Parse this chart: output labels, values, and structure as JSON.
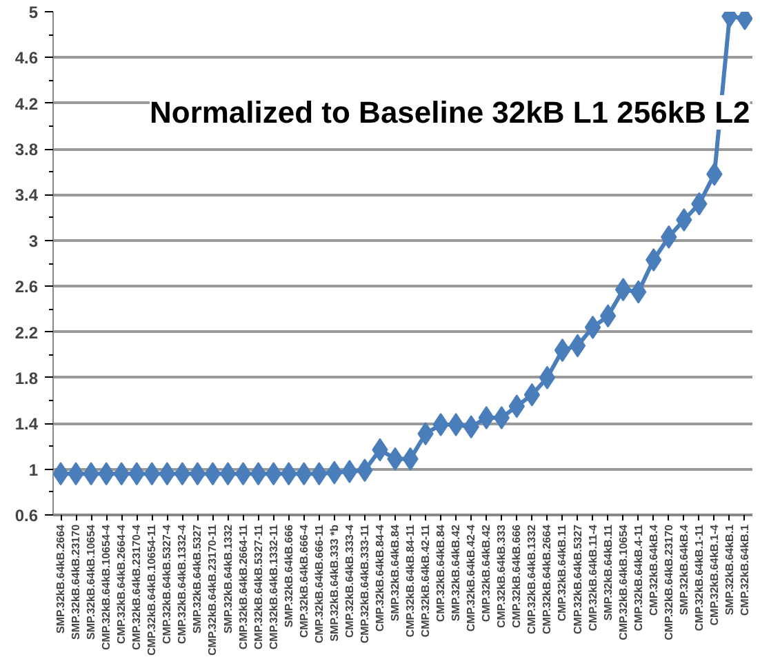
{
  "chart_data": {
    "type": "line",
    "title": "Normalized to Baseline 32kB L1 256kB L2",
    "categories": [
      "SMP.32kB.64kB.2664",
      "SMP.32kB.64kB.23170",
      "SMP.32kB.64kB.10654",
      "CMP.32kB.64kB.10654-4",
      "CMP.32kB.64kB.2664-4",
      "CMP.32kB.64kB.23170-4",
      "CMP.32kB.64kB.10654-11",
      "CMP.32kB.64kB.5327-4",
      "CMP.32kB.64kB.1332-4",
      "SMP.32kB.64kB.5327",
      "CMP.32kB.64kB.23170-11",
      "SMP.32kB.64kB.1332",
      "CMP.32kB.64kB.2664-11",
      "CMP.32kB.64kB.5327-11",
      "CMP.32kB.64kB.1332-11",
      "SMP.32kB.64kB.666",
      "CMP.32kB.64kB.666-4",
      "CMP.32kB.64kB.666-11",
      "SMP.32kB.64kB.333 *b",
      "CMP.32kB.64kB.333-4",
      "CMP.32kB.64kB.333-11",
      "CMP.32kB.64kB.84-4",
      "SMP.32kB.64kB.84",
      "CMP.32kB.64kB.84-11",
      "CMP.32kB.64kB.42-11",
      "CMP.32kB.64kB.84",
      "SMP.32kB.64kB.42",
      "CMP.32kB.64kB.42-4",
      "CMP.32kB.64kB.42",
      "CMP.32kB.64kB.333",
      "CMP.32kB.64kB.666",
      "CMP.32kB.64kB.1332",
      "CMP.32kB.64kB.2664",
      "CMP.32kB.64kB.11",
      "CMP.32kB.64kB.5327",
      "CMP.32kB.64kB.11-4",
      "SMP.32kB.64kB.11",
      "CMP.32kB.64kB.10654",
      "CMP.32kB.64kB.4-11",
      "CMP.32kB.64kB.4",
      "CMP.32kB.64kB.23170",
      "SMP.32kB.64kB.4",
      "CMP.32kB.64kB.1-11",
      "CMP.32kB.64kB.1-4",
      "SMP.32kB.64kB.1",
      "CMP.32kB.64kB.1"
    ],
    "series": [
      {
        "color": "#4a7ebb",
        "values": [
          0.96,
          0.96,
          0.96,
          0.96,
          0.96,
          0.96,
          0.96,
          0.96,
          0.96,
          0.96,
          0.96,
          0.96,
          0.96,
          0.96,
          0.96,
          0.96,
          0.96,
          0.96,
          0.97,
          0.98,
          0.99,
          1.17,
          1.09,
          1.09,
          1.31,
          1.39,
          1.39,
          1.37,
          1.45,
          1.45,
          1.55,
          1.65,
          1.8,
          2.04,
          2.08,
          2.24,
          2.34,
          2.57,
          2.55,
          2.83,
          3.03,
          3.18,
          3.32,
          3.58,
          4.96,
          4.94
        ]
      }
    ],
    "ylim": [
      0.6,
      5
    ],
    "yticks": [
      0.6,
      1,
      1.4,
      1.8,
      2.2,
      2.6,
      3,
      3.4,
      3.8,
      4.2,
      4.6,
      5
    ],
    "grid": "y",
    "marker": "diamond",
    "line_style": "solid"
  }
}
